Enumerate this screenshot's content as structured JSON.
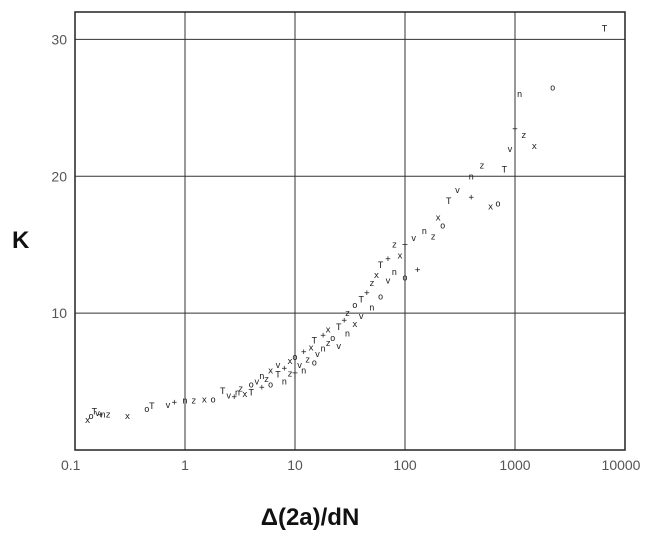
{
  "chart_data": {
    "type": "scatter",
    "xlabel": "Δ(2a)/dN",
    "ylabel": "K",
    "x_scale": "log",
    "y_scale": "linear",
    "xlim": [
      0.1,
      10000
    ],
    "ylim": [
      0,
      32
    ],
    "x_ticks": [
      "0.1",
      "1",
      "10",
      "100",
      "1000",
      "10000"
    ],
    "x_tick_values": [
      0.1,
      1,
      10,
      100,
      1000,
      10000
    ],
    "y_ticks": [
      "10",
      "20",
      "30"
    ],
    "y_tick_values": [
      10,
      20,
      30
    ],
    "grid": true,
    "series": [
      {
        "marker": "small letter symbols",
        "points": [
          [
            0.13,
            2.2
          ],
          [
            0.14,
            2.5
          ],
          [
            0.15,
            2.8
          ],
          [
            0.16,
            2.7
          ],
          [
            0.17,
            2.6
          ],
          [
            0.18,
            2.6
          ],
          [
            0.2,
            2.6
          ],
          [
            0.3,
            2.5
          ],
          [
            0.45,
            3.0
          ],
          [
            0.5,
            3.2
          ],
          [
            0.7,
            3.3
          ],
          [
            0.8,
            3.5
          ],
          [
            1.0,
            3.6
          ],
          [
            1.2,
            3.6
          ],
          [
            1.5,
            3.7
          ],
          [
            1.8,
            3.7
          ],
          [
            2.2,
            4.3
          ],
          [
            2.5,
            4.0
          ],
          [
            2.8,
            3.9
          ],
          [
            3.0,
            4.2
          ],
          [
            3.2,
            4.5
          ],
          [
            3.5,
            4.1
          ],
          [
            4.0,
            4.8
          ],
          [
            4.0,
            4.2
          ],
          [
            4.5,
            5.0
          ],
          [
            5.0,
            4.6
          ],
          [
            5.0,
            5.4
          ],
          [
            5.5,
            5.2
          ],
          [
            6.0,
            5.8
          ],
          [
            6.0,
            4.8
          ],
          [
            7.0,
            5.5
          ],
          [
            7.0,
            6.2
          ],
          [
            8.0,
            6.0
          ],
          [
            8.0,
            5.0
          ],
          [
            9.0,
            5.6
          ],
          [
            9.0,
            6.5
          ],
          [
            10,
            6.8
          ],
          [
            10,
            5.4
          ],
          [
            11,
            6.2
          ],
          [
            12,
            7.2
          ],
          [
            12,
            5.8
          ],
          [
            13,
            6.6
          ],
          [
            14,
            7.5
          ],
          [
            15,
            6.4
          ],
          [
            15,
            8.0
          ],
          [
            16,
            7.0
          ],
          [
            18,
            8.4
          ],
          [
            18,
            7.4
          ],
          [
            20,
            7.8
          ],
          [
            20,
            8.8
          ],
          [
            22,
            8.2
          ],
          [
            25,
            9.0
          ],
          [
            25,
            7.6
          ],
          [
            28,
            9.5
          ],
          [
            30,
            8.5
          ],
          [
            30,
            10.0
          ],
          [
            35,
            9.2
          ],
          [
            35,
            10.6
          ],
          [
            40,
            11.0
          ],
          [
            40,
            9.8
          ],
          [
            45,
            11.5
          ],
          [
            50,
            10.4
          ],
          [
            50,
            12.2
          ],
          [
            55,
            12.8
          ],
          [
            60,
            11.2
          ],
          [
            60,
            13.5
          ],
          [
            70,
            12.4
          ],
          [
            70,
            14.0
          ],
          [
            80,
            13.0
          ],
          [
            80,
            15.0
          ],
          [
            90,
            14.2
          ],
          [
            100,
            12.6
          ],
          [
            100,
            14.8
          ],
          [
            120,
            15.5
          ],
          [
            130,
            13.2
          ],
          [
            150,
            16.0
          ],
          [
            180,
            15.6
          ],
          [
            200,
            17.0
          ],
          [
            220,
            16.4
          ],
          [
            250,
            18.2
          ],
          [
            300,
            19.0
          ],
          [
            400,
            18.5
          ],
          [
            400,
            20.0
          ],
          [
            500,
            20.8
          ],
          [
            600,
            17.8
          ],
          [
            700,
            18.0
          ],
          [
            800,
            20.5
          ],
          [
            900,
            22.0
          ],
          [
            1000,
            23.5
          ],
          [
            1100,
            26.0
          ],
          [
            1200,
            23.0
          ],
          [
            1500,
            22.2
          ],
          [
            2200,
            26.5
          ],
          [
            6500,
            30.8
          ]
        ]
      }
    ]
  }
}
